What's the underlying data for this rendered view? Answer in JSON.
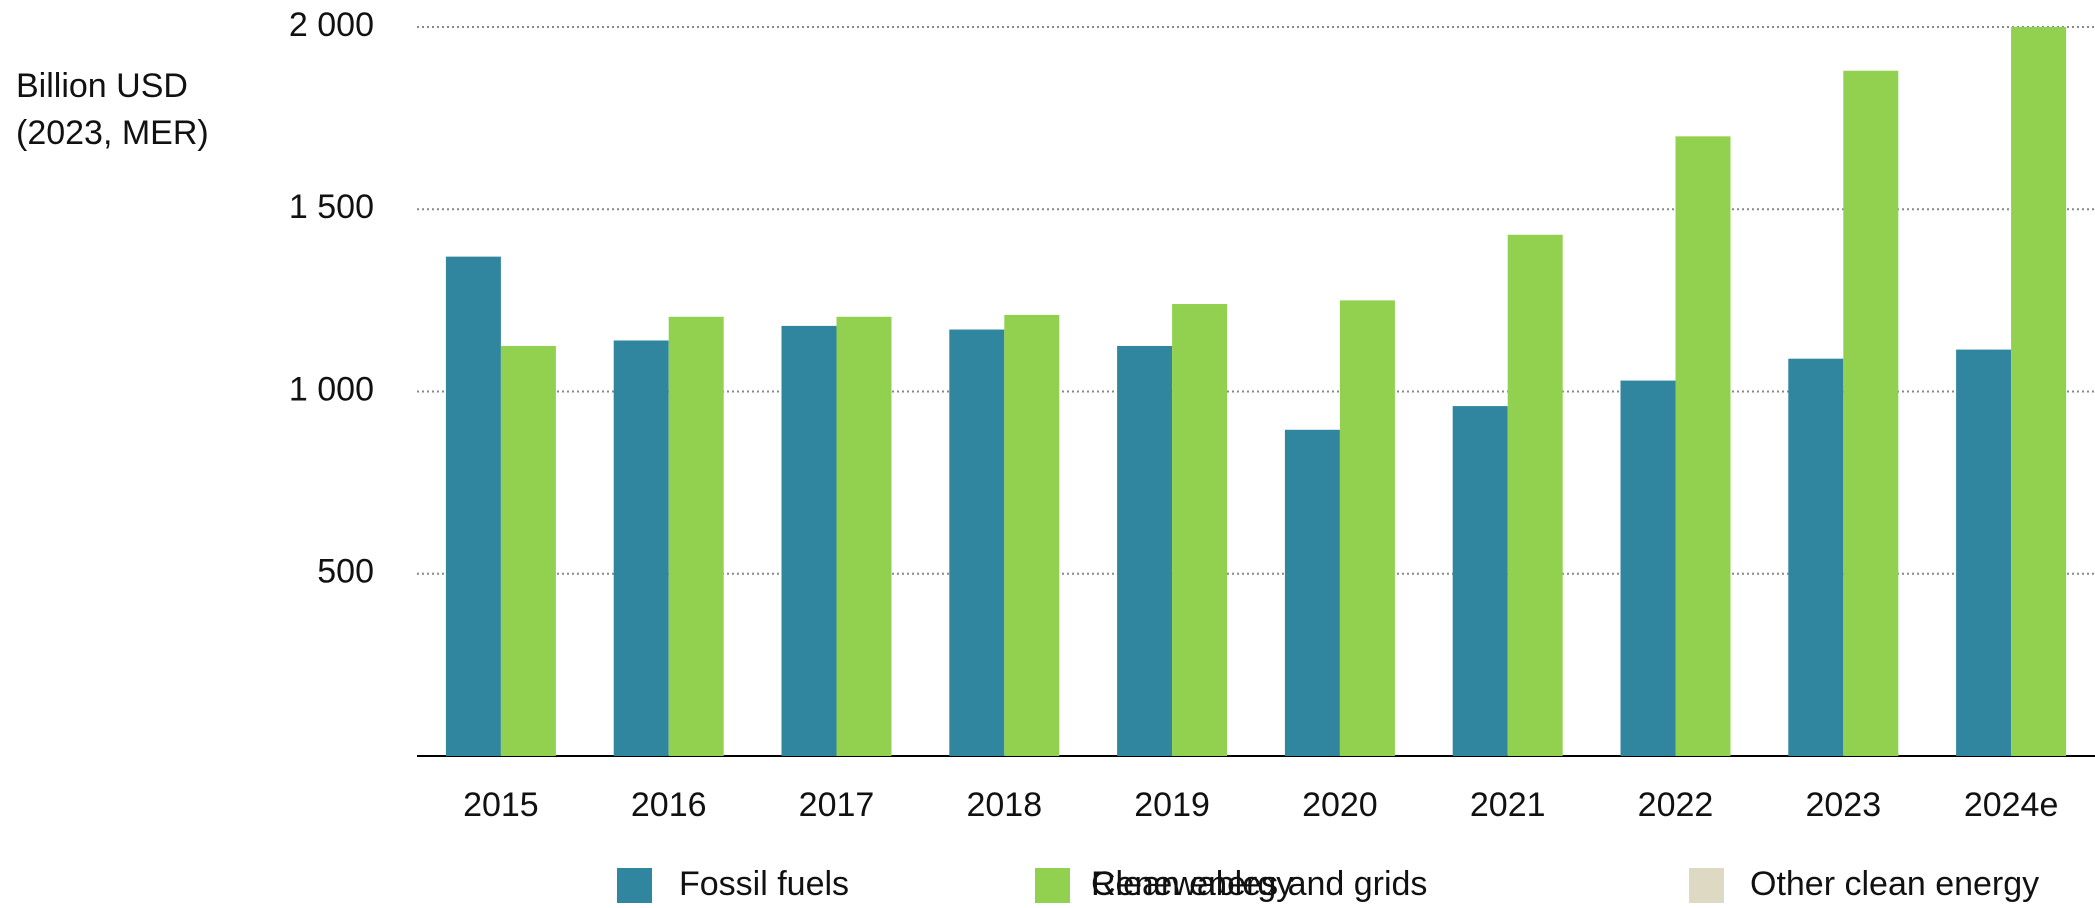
{
  "chart_data": {
    "type": "bar",
    "y_label": [
      "Billion USD",
      "(2023, MER)"
    ],
    "categories": [
      "2015",
      "2016",
      "2017",
      "2018",
      "2019",
      "2020",
      "2021",
      "2022",
      "2023",
      "2024e"
    ],
    "series": [
      {
        "name": "Fossil fuels",
        "color": "#31869f",
        "values": [
          1370,
          1140,
          1180,
          1170,
          1125,
          895,
          960,
          1030,
          1090,
          1115
        ]
      },
      {
        "name": "Renewables and grids",
        "color": "#e8873a",
        "values": [
          null,
          null,
          null,
          null,
          null,
          null,
          null,
          null,
          null,
          null
        ]
      },
      {
        "name": "Clean energy",
        "color": "#92d050",
        "values": [
          1125,
          1205,
          1205,
          1210,
          1240,
          1250,
          1430,
          1700,
          1880,
          2000
        ]
      },
      {
        "name": "Other clean energy",
        "color": "#ddd9c3",
        "values": [
          null,
          null,
          null,
          null,
          null,
          null,
          null,
          null,
          null,
          null
        ]
      }
    ],
    "ylim": [
      0,
      2000
    ],
    "yticks": [
      500,
      {
        "value": 1000,
        "label": "1 000"
      },
      {
        "value": 1500,
        "label": "1 500"
      },
      {
        "value": 2000,
        "label": "2 000"
      }
    ],
    "grid": true
  }
}
